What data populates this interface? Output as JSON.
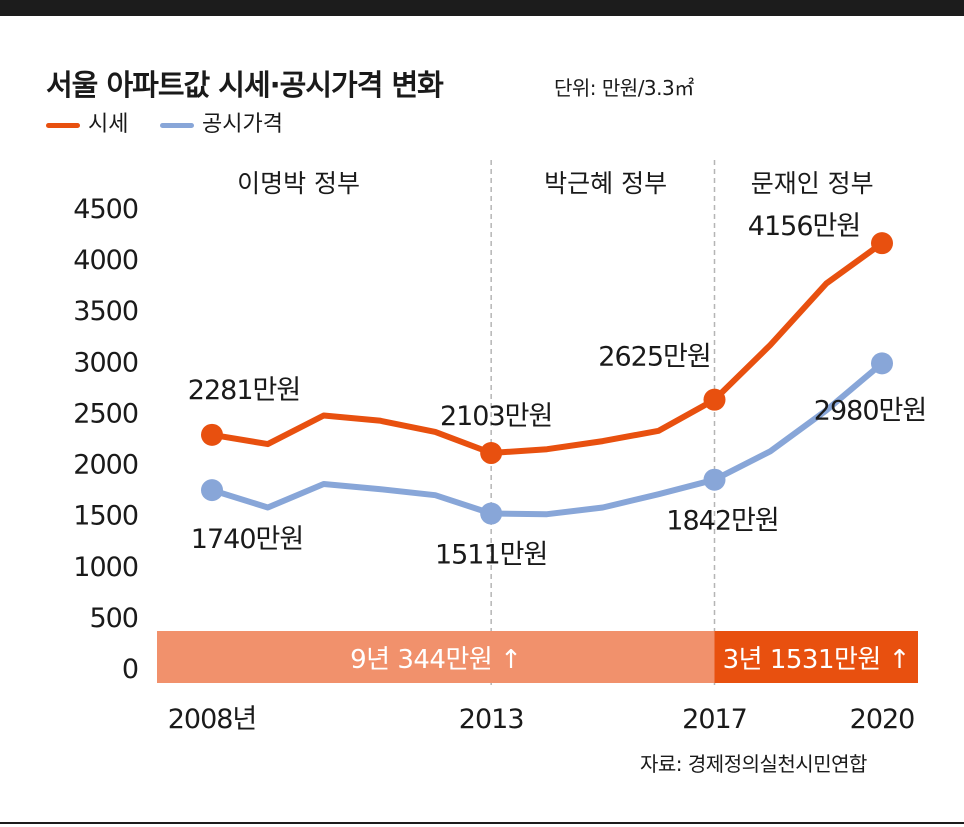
{
  "header": {
    "title": "서울 아파트값 시세·공시가격 변화",
    "unit": "단위: 만원/3.3㎡"
  },
  "legend": [
    {
      "label": "시세",
      "color": "#e8500f"
    },
    {
      "label": "공시가격",
      "color": "#88a6d8"
    }
  ],
  "source": "자료: 경제정의실천시민연합",
  "chart_data": {
    "type": "line",
    "x": [
      2008,
      2009,
      2010,
      2011,
      2012,
      2013,
      2014,
      2015,
      2016,
      2017,
      2018,
      2019,
      2020
    ],
    "x_tick_labels": [
      {
        "x": 2008,
        "label": "2008년"
      },
      {
        "x": 2013,
        "label": "2013"
      },
      {
        "x": 2017,
        "label": "2017"
      },
      {
        "x": 2020,
        "label": "2020"
      }
    ],
    "ylim": [
      0,
      4500
    ],
    "y_ticks": [
      0,
      500,
      1000,
      1500,
      2000,
      2500,
      3000,
      3500,
      4000,
      4500
    ],
    "grid": false,
    "series": [
      {
        "name": "시세",
        "color": "#e8500f",
        "values": [
          2281,
          2190,
          2470,
          2420,
          2310,
          2103,
          2140,
          2220,
          2320,
          2625,
          3160,
          3760,
          4156
        ]
      },
      {
        "name": "공시가격",
        "color": "#88a6d8",
        "values": [
          1740,
          1570,
          1800,
          1750,
          1690,
          1511,
          1505,
          1570,
          1700,
          1842,
          2120,
          2520,
          2980
        ]
      }
    ],
    "markers": [
      {
        "series": 0,
        "x": 2008,
        "label": "2281만원"
      },
      {
        "series": 0,
        "x": 2013,
        "label": "2103만원"
      },
      {
        "series": 0,
        "x": 2017,
        "label": "2625만원"
      },
      {
        "series": 0,
        "x": 2020,
        "label": "4156만원"
      },
      {
        "series": 1,
        "x": 2008,
        "label": "1740만원"
      },
      {
        "series": 1,
        "x": 2013,
        "label": "1511만원"
      },
      {
        "series": 1,
        "x": 2017,
        "label": "1842만원"
      },
      {
        "series": 1,
        "x": 2020,
        "label": "2980만원"
      }
    ],
    "periods": [
      {
        "name": "이명박 정부",
        "from": 2008,
        "to": 2013
      },
      {
        "name": "박근혜 정부",
        "from": 2013,
        "to": 2017
      },
      {
        "name": "문재인 정부",
        "from": 2017,
        "to": 2020
      }
    ],
    "change_bands": [
      {
        "from": 2008,
        "to": 2017,
        "label": "9년 344만원 ↑",
        "color": "#f1916c"
      },
      {
        "from": 2017,
        "to": 2020,
        "label": "3년 1531만원 ↑",
        "color": "#e8500f"
      }
    ]
  }
}
